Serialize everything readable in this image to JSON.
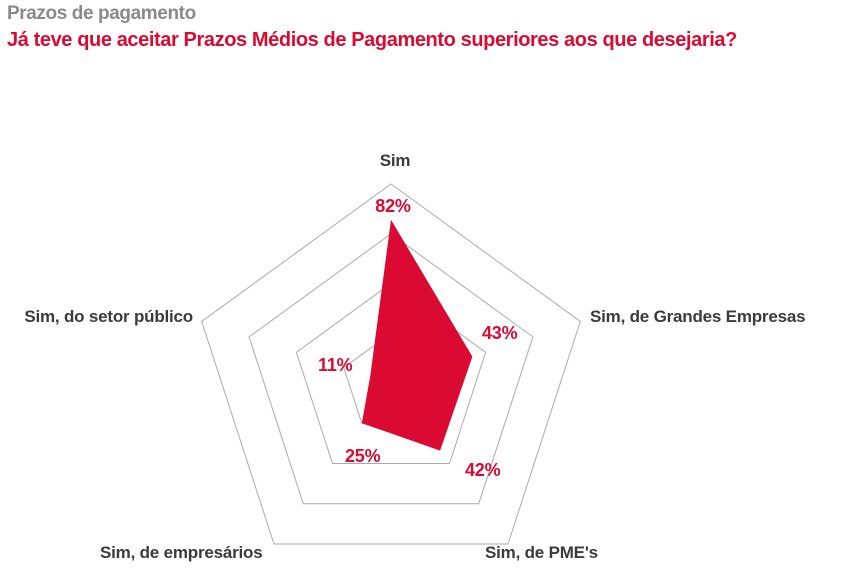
{
  "header": {
    "kicker": "Prazos de pagamento",
    "title": "Já teve que aceitar Prazos Médios de Pagamento superiores aos que desejaria?"
  },
  "colors": {
    "accent_red": "#DA0A32",
    "kicker_gray": "#8A8A8A",
    "axis_label_dark": "#3B3B3B",
    "grid_gray": "#ABABAB",
    "background": "#FFFFFF"
  },
  "chart_data": {
    "type": "radar",
    "title": "Já teve que aceitar Prazos Médios de Pagamento superiores aos que desejaria?",
    "categories": [
      "Sim",
      "Sim, de Grandes Empresas",
      "Sim, de PME's",
      "Sim, de empresários",
      "Sim, do setor público"
    ],
    "values": [
      82,
      43,
      42,
      25,
      11
    ],
    "unit": "%",
    "scale_max": 100,
    "grid_rings_pct": [
      25,
      50,
      75,
      100
    ],
    "grid": true,
    "legend": false,
    "fill_color": "#DA0A32",
    "axes": [
      {
        "label": "Sim",
        "value": 82,
        "value_label": "82%"
      },
      {
        "label": "Sim, de Grandes Empresas",
        "value": 43,
        "value_label": "43%"
      },
      {
        "label": "Sim, de PME's",
        "value": 42,
        "value_label": "42%"
      },
      {
        "label": "Sim, de empresários",
        "value": 25,
        "value_label": "25%"
      },
      {
        "label": "Sim, do setor público",
        "value": 11,
        "value_label": "11%"
      }
    ]
  }
}
